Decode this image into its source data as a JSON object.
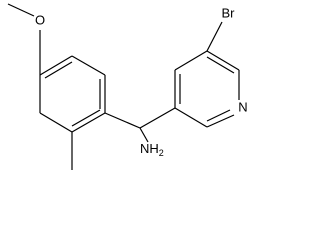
{
  "labels": {
    "bromine": "Br",
    "nitrogen": "N",
    "amine": "NH",
    "amine_subscript": "2",
    "oxygen": "O"
  }
}
